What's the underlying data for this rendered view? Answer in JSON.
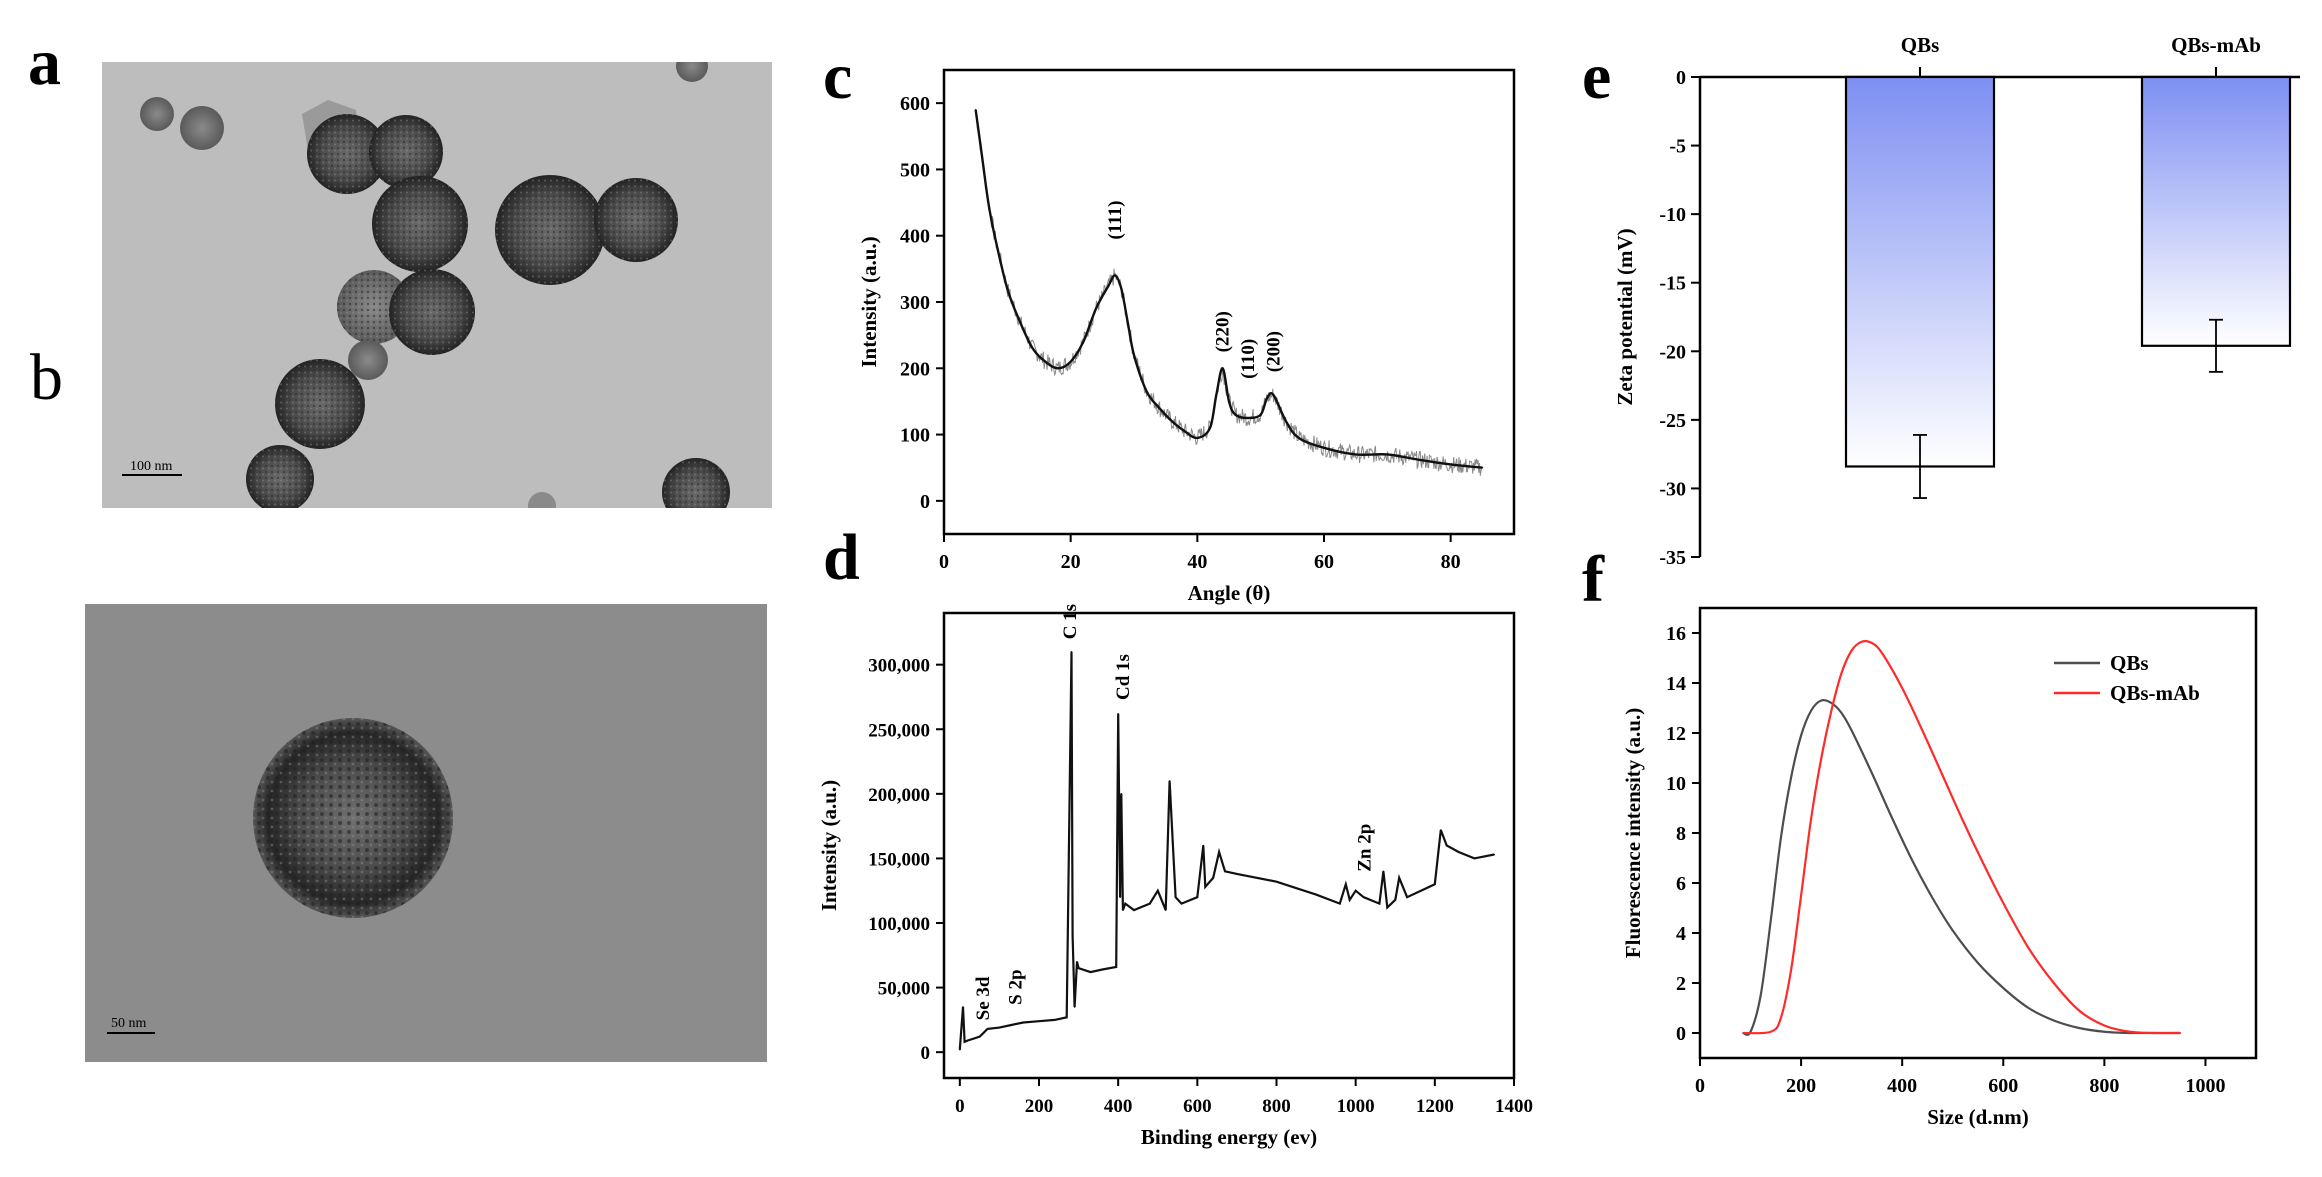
{
  "panels": {
    "a": {
      "letter": "a",
      "scale_label": "100 nm"
    },
    "b": {
      "letter": "b",
      "scale_label": "50 nm"
    },
    "c": {
      "letter": "c"
    },
    "d": {
      "letter": "d"
    },
    "e": {
      "letter": "e"
    },
    "f": {
      "letter": "f"
    }
  },
  "colors": {
    "tem_a_bg": "#bdbdbd",
    "tem_b_bg": "#8c8c8c",
    "bar_top": "#7d8ff2",
    "bar_bottom": "#ffffff",
    "qbs_line": "#4d4d4d",
    "qbs_mab_line": "#ff2a2a"
  },
  "chart_data": [
    {
      "id": "c",
      "type": "line",
      "xlabel": "Angle (θ)",
      "ylabel": "Intensity (a.u.)",
      "xlim": [
        0,
        90
      ],
      "ylim": [
        -50,
        650
      ],
      "xticks": [
        0,
        20,
        40,
        60,
        80
      ],
      "yticks": [
        0,
        100,
        200,
        300,
        400,
        500,
        600
      ],
      "annotations": [
        {
          "label": "(111)",
          "x": 27,
          "y": 385
        },
        {
          "label": "(220)",
          "x": 44,
          "y": 215
        },
        {
          "label": "(110)",
          "x": 48,
          "y": 175
        },
        {
          "label": "(200)",
          "x": 52,
          "y": 185
        }
      ],
      "series": [
        {
          "x": [
            5,
            6,
            7,
            8,
            10,
            12,
            14,
            16,
            18,
            20,
            22,
            24,
            26,
            27,
            28,
            29,
            30,
            32,
            34,
            36,
            38,
            40,
            42,
            43,
            44,
            45,
            46,
            48,
            50,
            51,
            52,
            54,
            56,
            60,
            65,
            70,
            75,
            80,
            85
          ],
          "values": [
            590,
            520,
            450,
            400,
            320,
            270,
            230,
            210,
            200,
            210,
            240,
            290,
            325,
            340,
            320,
            270,
            220,
            165,
            140,
            120,
            105,
            95,
            110,
            160,
            200,
            150,
            130,
            125,
            130,
            155,
            160,
            120,
            95,
            80,
            70,
            70,
            62,
            55,
            50
          ]
        }
      ]
    },
    {
      "id": "d",
      "type": "line",
      "xlabel": "Binding energy (ev)",
      "ylabel": "Intensity (a.u.)",
      "xlim": [
        -40,
        1400
      ],
      "ylim": [
        -20000,
        340000
      ],
      "xticks": [
        0,
        200,
        400,
        600,
        800,
        1000,
        1200,
        1400
      ],
      "yticks": [
        0,
        50000,
        100000,
        150000,
        200000,
        250000,
        300000
      ],
      "ytick_labels": [
        "0",
        "50,000",
        "100,000",
        "150,000",
        "200,000",
        "250,000",
        "300,000"
      ],
      "annotations": [
        {
          "label": "Se 3d",
          "x": 58,
          "y": 20000
        },
        {
          "label": "S 2p",
          "x": 140,
          "y": 32000
        },
        {
          "label": "C 1s",
          "x": 278,
          "y": 315000
        },
        {
          "label": "Cd 1s",
          "x": 412,
          "y": 268000
        },
        {
          "label": "Zn 2p",
          "x": 1022,
          "y": 135000
        }
      ],
      "series": [
        {
          "x": [
            0,
            8,
            12,
            20,
            50,
            60,
            70,
            100,
            130,
            160,
            200,
            240,
            270,
            282,
            285,
            290,
            296,
            300,
            330,
            360,
            395,
            400,
            405,
            408,
            412,
            418,
            440,
            480,
            500,
            520,
            530,
            545,
            560,
            600,
            615,
            620,
            640,
            655,
            670,
            700,
            800,
            900,
            960,
            975,
            985,
            1000,
            1020,
            1060,
            1070,
            1080,
            1100,
            1110,
            1130,
            1200,
            1215,
            1230,
            1260,
            1300,
            1350
          ],
          "values": [
            2000,
            35000,
            8000,
            9000,
            12000,
            15000,
            18000,
            19000,
            21000,
            23000,
            24000,
            25000,
            27000,
            310000,
            90000,
            35000,
            70000,
            65000,
            62000,
            64000,
            66000,
            262000,
            120000,
            200000,
            110000,
            115000,
            110000,
            115000,
            125000,
            110000,
            210000,
            120000,
            115000,
            120000,
            160000,
            128000,
            135000,
            155000,
            140000,
            138000,
            132000,
            122000,
            115000,
            130000,
            118000,
            125000,
            120000,
            115000,
            140000,
            112000,
            118000,
            135000,
            120000,
            130000,
            172000,
            160000,
            155000,
            150000,
            153000
          ]
        }
      ]
    },
    {
      "id": "e",
      "type": "bar",
      "categories": [
        "QBs",
        "QBs-mAb"
      ],
      "values": [
        -28.4,
        -19.6
      ],
      "errors": [
        2.3,
        1.9
      ],
      "ylabel": "Zeta potential (mV)",
      "ylim": [
        -35,
        0
      ],
      "yticks": [
        0,
        -5,
        -10,
        -15,
        -20,
        -25,
        -30,
        -35
      ]
    },
    {
      "id": "f",
      "type": "line",
      "xlabel": "Size (d.nm)",
      "ylabel": "Fluorescence intensity (a.u.)",
      "xlim": [
        0,
        1100
      ],
      "ylim": [
        -1,
        17
      ],
      "xticks": [
        0,
        200,
        400,
        600,
        800,
        1000
      ],
      "yticks": [
        0,
        2,
        4,
        6,
        8,
        10,
        12,
        14,
        16
      ],
      "legend_position": "top-right",
      "series": [
        {
          "name": "QBs",
          "color": "#4d4d4d",
          "x": [
            85,
            100,
            120,
            140,
            160,
            180,
            200,
            220,
            240,
            260,
            280,
            300,
            340,
            380,
            420,
            460,
            500,
            550,
            600,
            650,
            700,
            750,
            800,
            850,
            900,
            950
          ],
          "values": [
            0,
            0.05,
            1.5,
            4.5,
            7.8,
            10.2,
            11.9,
            12.9,
            13.3,
            13.2,
            12.8,
            12.1,
            10.4,
            8.6,
            6.9,
            5.4,
            4.1,
            2.8,
            1.8,
            1.0,
            0.5,
            0.2,
            0.05,
            0,
            0,
            0
          ]
        },
        {
          "name": "QBs-mAb",
          "color": "#ff2a2a",
          "x": [
            85,
            140,
            160,
            180,
            200,
            220,
            240,
            260,
            280,
            300,
            320,
            340,
            360,
            400,
            440,
            480,
            520,
            560,
            600,
            650,
            700,
            750,
            800,
            850,
            900,
            950
          ],
          "values": [
            0,
            0.05,
            0.6,
            2.5,
            5.5,
            8.6,
            11.0,
            12.9,
            14.4,
            15.3,
            15.65,
            15.6,
            15.2,
            13.8,
            12.1,
            10.3,
            8.5,
            6.8,
            5.2,
            3.4,
            2.0,
            0.9,
            0.3,
            0.05,
            0,
            0
          ]
        }
      ]
    }
  ]
}
